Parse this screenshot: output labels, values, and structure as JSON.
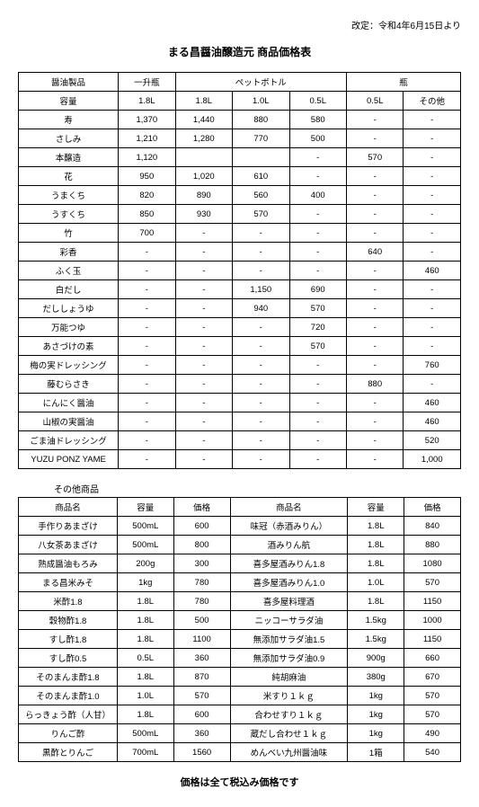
{
  "revision": "改定：令和4年6月15日より",
  "title": "まる昌醤油醸造元 商品価格表",
  "table1": {
    "header_row1": [
      "醤油製品",
      "一升瓶",
      "ペットボトル",
      "瓶"
    ],
    "header_row2": [
      "容量",
      "1.8L",
      "1.8L",
      "1.0L",
      "0.5L",
      "0.5L",
      "その他"
    ],
    "rows": [
      [
        "寿",
        "1,370",
        "1,440",
        "880",
        "580",
        "-",
        "-"
      ],
      [
        "さしみ",
        "1,210",
        "1,280",
        "770",
        "500",
        "-",
        "-"
      ],
      [
        "本醸造",
        "1,120",
        "",
        "",
        "-",
        "570",
        "-"
      ],
      [
        "花",
        "950",
        "1,020",
        "610",
        "-",
        "-",
        "-"
      ],
      [
        "うまくち",
        "820",
        "890",
        "560",
        "400",
        "-",
        "-"
      ],
      [
        "うすくち",
        "850",
        "930",
        "570",
        "-",
        "-",
        "-"
      ],
      [
        "竹",
        "700",
        "-",
        "-",
        "-",
        "-",
        "-"
      ],
      [
        "彩香",
        "-",
        "-",
        "-",
        "-",
        "640",
        "-"
      ],
      [
        "ふく玉",
        "-",
        "-",
        "-",
        "-",
        "-",
        "460"
      ],
      [
        "白だし",
        "-",
        "-",
        "1,150",
        "690",
        "-",
        "-"
      ],
      [
        "だししょうゆ",
        "-",
        "-",
        "940",
        "570",
        "-",
        "-"
      ],
      [
        "万能つゆ",
        "-",
        "-",
        "-",
        "720",
        "-",
        "-"
      ],
      [
        "あさづけの素",
        "-",
        "-",
        "-",
        "570",
        "-",
        "-"
      ],
      [
        "梅の実ドレッシング",
        "-",
        "-",
        "-",
        "-",
        "-",
        "760"
      ],
      [
        "藤むらさき",
        "-",
        "-",
        "-",
        "-",
        "880",
        "-"
      ],
      [
        "にんにく醤油",
        "-",
        "-",
        "-",
        "-",
        "-",
        "460"
      ],
      [
        "山椒の実醤油",
        "-",
        "-",
        "-",
        "-",
        "-",
        "460"
      ],
      [
        "ごま油ドレッシング",
        "-",
        "-",
        "-",
        "-",
        "-",
        "520"
      ],
      [
        "YUZU PONZ YAME",
        "-",
        "-",
        "-",
        "-",
        "-",
        "1,000"
      ]
    ]
  },
  "section2_label": "その他商品",
  "table2": {
    "header": [
      "商品名",
      "容量",
      "価格",
      "商品名",
      "容量",
      "価格"
    ],
    "rows": [
      [
        "手作りあまざけ",
        "500mL",
        "600",
        "味冠（赤酒みりん）",
        "1.8L",
        "840"
      ],
      [
        "八女茶あまざけ",
        "500mL",
        "800",
        "酒みりん航",
        "1.8L",
        "880"
      ],
      [
        "熟成醤油もろみ",
        "200g",
        "300",
        "喜多屋酒みりん1.8",
        "1.8L",
        "1080"
      ],
      [
        "まる昌米みそ",
        "1kg",
        "780",
        "喜多屋酒みりん1.0",
        "1.0L",
        "570"
      ],
      [
        "米酢1.8",
        "1.8L",
        "780",
        "喜多屋料理酒",
        "1.8L",
        "1150"
      ],
      [
        "穀物酢1.8",
        "1.8L",
        "500",
        "ニッコーサラダ油",
        "1.5kg",
        "1000"
      ],
      [
        "すし酢1.8",
        "1.8L",
        "1100",
        "無添加サラダ油1.5",
        "1.5kg",
        "1150"
      ],
      [
        "すし酢0.5",
        "0.5L",
        "360",
        "無添加サラダ油0.9",
        "900g",
        "660"
      ],
      [
        "そのまんま酢1.8",
        "1.8L",
        "870",
        "純胡麻油",
        "380g",
        "670"
      ],
      [
        "そのまんま酢1.0",
        "1.0L",
        "570",
        "米すり１ｋｇ",
        "1kg",
        "570"
      ],
      [
        "らっきょう酢（人甘）",
        "1.8L",
        "600",
        "合わせすり１ｋｇ",
        "1kg",
        "570"
      ],
      [
        "りんご酢",
        "500mL",
        "360",
        "蔵だし合わせ１ｋｇ",
        "1kg",
        "490"
      ],
      [
        "黒酢とりんご",
        "700mL",
        "1560",
        "めんべい九州醤油味",
        "1箱",
        "540"
      ]
    ]
  },
  "footer": "価格は全て税込み価格です"
}
